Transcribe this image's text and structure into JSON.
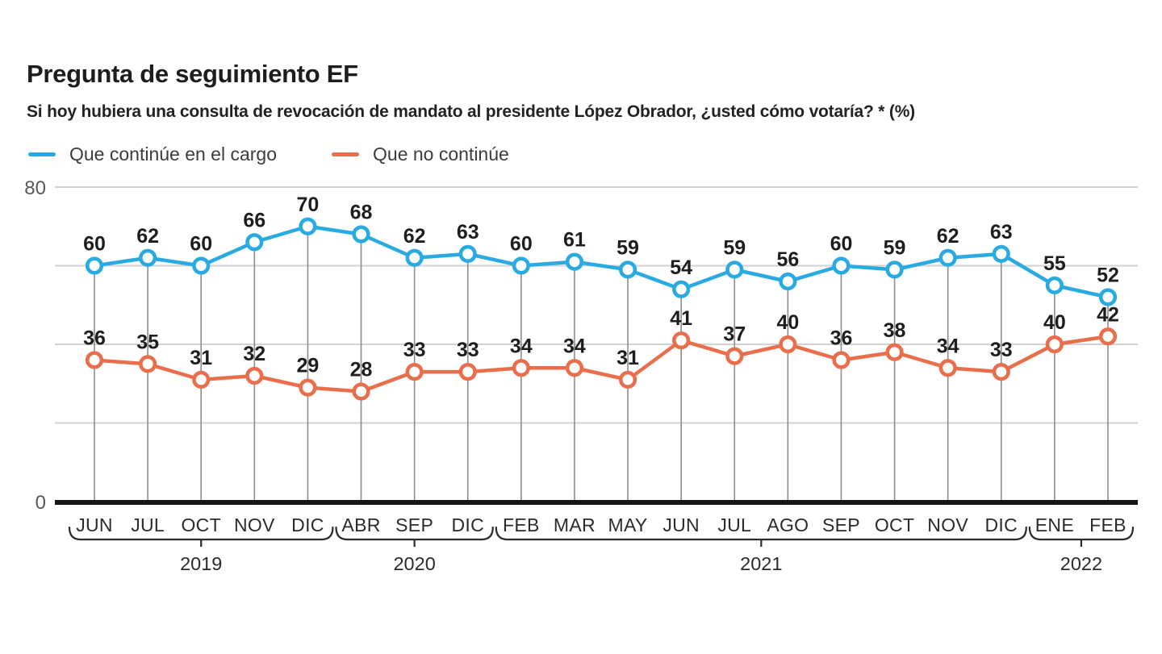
{
  "header": {
    "title": "Pregunta de seguimiento EF",
    "subtitle": "Si hoy hubiera una consulta de revocación de mandato al presidente López Obrador, ¿usted cómo votaría? *  (%)"
  },
  "legend": [
    {
      "label": "Que continúe en el cargo",
      "color": "#29abe2"
    },
    {
      "label": "Que no continúe",
      "color": "#e96f4c"
    }
  ],
  "chart_data": {
    "type": "line",
    "title": "Pregunta de seguimiento EF",
    "subtitle": "Si hoy hubiera una consulta de revocación de mandato al presidente López Obrador, ¿usted cómo votaría? *  (%)",
    "unit": "%",
    "categories": [
      "JUN",
      "JUL",
      "OCT",
      "NOV",
      "DIC",
      "ABR",
      "SEP",
      "DIC",
      "FEB",
      "MAR",
      "MAY",
      "JUN",
      "JUL",
      "AGO",
      "SEP",
      "OCT",
      "NOV",
      "DIC",
      "ENE",
      "FEB"
    ],
    "year_groups": [
      {
        "label": "2019",
        "from": 0,
        "to": 4
      },
      {
        "label": "2020",
        "from": 5,
        "to": 7
      },
      {
        "label": "2021",
        "from": 8,
        "to": 17
      },
      {
        "label": "2022",
        "from": 18,
        "to": 19
      }
    ],
    "series": [
      {
        "name": "Que continúe en el cargo",
        "color": "#29abe2",
        "values": [
          60,
          62,
          60,
          66,
          70,
          68,
          62,
          63,
          60,
          61,
          59,
          54,
          59,
          56,
          60,
          59,
          62,
          63,
          55,
          52
        ]
      },
      {
        "name": "Que no continúe",
        "color": "#e96f4c",
        "values": [
          36,
          35,
          31,
          32,
          29,
          28,
          33,
          33,
          34,
          34,
          31,
          41,
          37,
          40,
          36,
          38,
          34,
          33,
          40,
          42
        ]
      }
    ],
    "ylim": [
      0,
      80
    ],
    "gridlines": [
      20,
      40,
      60,
      80
    ],
    "ytick_labels": [
      {
        "value": 80,
        "label": "80"
      },
      {
        "value": 0,
        "label": "0"
      }
    ],
    "grid": true,
    "data_labels": true,
    "legend_position": "top-left"
  },
  "colors": {
    "series_continue": "#29abe2",
    "series_no_continue": "#e96f4c",
    "gridline": "#d2d2d2",
    "dropline": "#8d8d8d",
    "axis": "#141414",
    "text_dark": "#1e1e1e",
    "text_axis": "#58595b",
    "background": "#ffffff"
  }
}
